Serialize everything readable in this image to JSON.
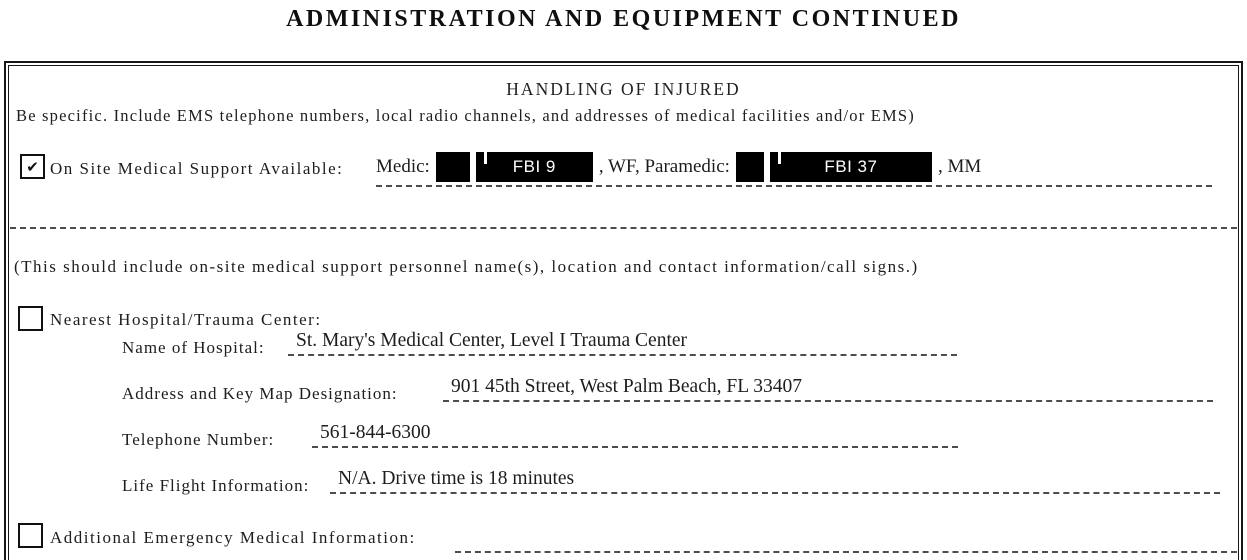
{
  "page_title": "ADMINISTRATION AND EQUIPMENT CONTINUED",
  "section": {
    "title": "HANDLING OF INJURED",
    "instruction": "Be specific. Include EMS telephone numbers, local radio channels, and addresses of medical facilities and/or EMS)",
    "note": "(This should include on-site medical support personnel name(s), location and contact information/call signs.)"
  },
  "icons": {
    "checkmark": "✔"
  },
  "fields": {
    "on_site_medical_support": {
      "checked": true,
      "label": "On Site Medical Support Available:",
      "value_parts": {
        "medic_label": "Medic:",
        "redaction_1_tag": "FBI 9",
        "middle": ", WF, Paramedic:",
        "redaction_2_tag": "FBI 37",
        "suffix": ", MM"
      }
    },
    "nearest_hospital": {
      "checked": false,
      "label": "Nearest Hospital/Trauma Center:",
      "name_of_hospital": {
        "label": "Name of Hospital:",
        "value": "St. Mary's Medical Center, Level I Trauma Center"
      },
      "address": {
        "label": "Address and Key Map Designation:",
        "value": "901 45th Street, West Palm Beach, FL 33407"
      },
      "telephone": {
        "label": "Telephone Number:",
        "value": "561-844-6300"
      },
      "life_flight": {
        "label": "Life Flight Information:",
        "value": "N/A. Drive time is 18 minutes"
      }
    },
    "additional_emergency": {
      "checked": false,
      "label": "Additional Emergency Medical Information:",
      "value": ""
    }
  },
  "colors": {
    "background": "#ffffff",
    "ink": "#1d1d1d",
    "dashed_line": "#4d4d4d",
    "redaction_bg": "#000000",
    "redaction_text": "#ffffff"
  }
}
